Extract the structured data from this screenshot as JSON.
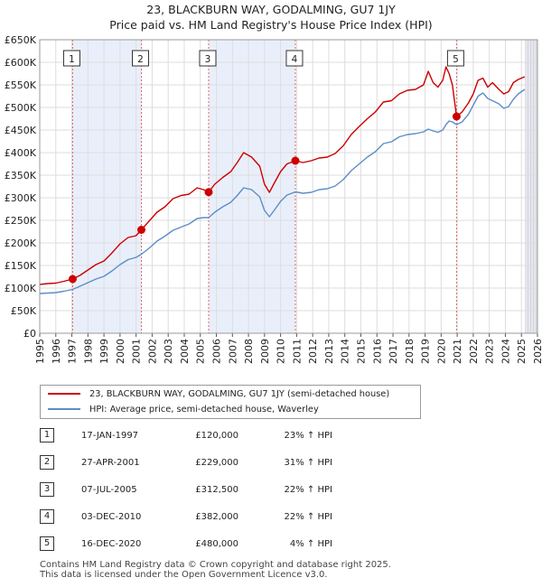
{
  "title": {
    "line1": "23, BLACKBURN WAY, GODALMING, GU7 1JY",
    "line2": "Price paid vs. HM Land Registry's House Price Index (HPI)"
  },
  "chart_data": {
    "type": "line",
    "x_ticks": [
      "1995",
      "1996",
      "1997",
      "1998",
      "1999",
      "2000",
      "2001",
      "2002",
      "2003",
      "2004",
      "2005",
      "2006",
      "2007",
      "2008",
      "2009",
      "2010",
      "2011",
      "2012",
      "2013",
      "2014",
      "2015",
      "2016",
      "2017",
      "2018",
      "2019",
      "2020",
      "2021",
      "2022",
      "2023",
      "2024",
      "2025",
      "2026"
    ],
    "y_ticks": [
      "£0",
      "£50K",
      "£100K",
      "£150K",
      "£200K",
      "£250K",
      "£300K",
      "£350K",
      "£400K",
      "£450K",
      "£500K",
      "£550K",
      "£600K",
      "£650K"
    ],
    "xlim": [
      1995,
      2026
    ],
    "ylim": [
      0,
      650000
    ],
    "grid": true,
    "series": [
      {
        "name": "23, BLACKBURN WAY, GODALMING, GU7 1JY (semi-detached house)",
        "color": "#cc0000",
        "points": [
          [
            1995.0,
            108000
          ],
          [
            1995.5,
            110000
          ],
          [
            1996.0,
            111000
          ],
          [
            1996.5,
            115000
          ],
          [
            1997.05,
            120000
          ],
          [
            1997.5,
            128000
          ],
          [
            1998.0,
            140000
          ],
          [
            1998.5,
            152000
          ],
          [
            1999.0,
            160000
          ],
          [
            1999.5,
            178000
          ],
          [
            2000.0,
            198000
          ],
          [
            2000.5,
            212000
          ],
          [
            2001.0,
            216000
          ],
          [
            2001.33,
            229000
          ],
          [
            2001.8,
            248000
          ],
          [
            2002.3,
            268000
          ],
          [
            2002.8,
            280000
          ],
          [
            2003.3,
            298000
          ],
          [
            2003.8,
            305000
          ],
          [
            2004.3,
            308000
          ],
          [
            2004.8,
            322000
          ],
          [
            2005.2,
            318000
          ],
          [
            2005.52,
            312500
          ],
          [
            2005.9,
            330000
          ],
          [
            2006.4,
            345000
          ],
          [
            2006.9,
            358000
          ],
          [
            2007.3,
            378000
          ],
          [
            2007.7,
            400000
          ],
          [
            2008.2,
            390000
          ],
          [
            2008.7,
            370000
          ],
          [
            2009.0,
            330000
          ],
          [
            2009.3,
            312000
          ],
          [
            2009.6,
            332000
          ],
          [
            2010.0,
            358000
          ],
          [
            2010.4,
            375000
          ],
          [
            2010.92,
            382000
          ],
          [
            2011.4,
            378000
          ],
          [
            2011.9,
            382000
          ],
          [
            2012.4,
            388000
          ],
          [
            2012.9,
            390000
          ],
          [
            2013.4,
            398000
          ],
          [
            2013.9,
            415000
          ],
          [
            2014.4,
            440000
          ],
          [
            2014.9,
            458000
          ],
          [
            2015.4,
            475000
          ],
          [
            2015.9,
            490000
          ],
          [
            2016.4,
            512000
          ],
          [
            2016.9,
            515000
          ],
          [
            2017.4,
            530000
          ],
          [
            2017.9,
            538000
          ],
          [
            2018.4,
            540000
          ],
          [
            2018.9,
            550000
          ],
          [
            2019.2,
            580000
          ],
          [
            2019.5,
            555000
          ],
          [
            2019.8,
            545000
          ],
          [
            2020.1,
            560000
          ],
          [
            2020.3,
            590000
          ],
          [
            2020.5,
            575000
          ],
          [
            2020.7,
            550000
          ],
          [
            2020.96,
            480000
          ],
          [
            2021.3,
            490000
          ],
          [
            2021.7,
            510000
          ],
          [
            2022.0,
            530000
          ],
          [
            2022.3,
            560000
          ],
          [
            2022.6,
            565000
          ],
          [
            2022.9,
            545000
          ],
          [
            2023.2,
            555000
          ],
          [
            2023.6,
            540000
          ],
          [
            2023.9,
            530000
          ],
          [
            2024.2,
            535000
          ],
          [
            2024.5,
            555000
          ],
          [
            2024.8,
            562000
          ],
          [
            2025.2,
            568000
          ]
        ]
      },
      {
        "name": "HPI: Average price, semi-detached house, Waverley",
        "color": "#5b8ec9",
        "points": [
          [
            1995.0,
            88000
          ],
          [
            1995.5,
            89000
          ],
          [
            1996.0,
            90000
          ],
          [
            1996.5,
            93000
          ],
          [
            1997.05,
            97000
          ],
          [
            1997.5,
            104000
          ],
          [
            1998.0,
            112000
          ],
          [
            1998.5,
            120000
          ],
          [
            1999.0,
            126000
          ],
          [
            1999.5,
            138000
          ],
          [
            2000.0,
            152000
          ],
          [
            2000.5,
            163000
          ],
          [
            2001.0,
            168000
          ],
          [
            2001.33,
            175000
          ],
          [
            2001.8,
            188000
          ],
          [
            2002.3,
            204000
          ],
          [
            2002.8,
            215000
          ],
          [
            2003.3,
            228000
          ],
          [
            2003.8,
            235000
          ],
          [
            2004.3,
            242000
          ],
          [
            2004.8,
            254000
          ],
          [
            2005.2,
            256000
          ],
          [
            2005.52,
            256000
          ],
          [
            2005.9,
            268000
          ],
          [
            2006.4,
            280000
          ],
          [
            2006.9,
            290000
          ],
          [
            2007.3,
            305000
          ],
          [
            2007.7,
            322000
          ],
          [
            2008.2,
            318000
          ],
          [
            2008.7,
            302000
          ],
          [
            2009.0,
            272000
          ],
          [
            2009.3,
            258000
          ],
          [
            2009.6,
            272000
          ],
          [
            2010.0,
            292000
          ],
          [
            2010.4,
            306000
          ],
          [
            2010.92,
            313000
          ],
          [
            2011.4,
            310000
          ],
          [
            2011.9,
            312000
          ],
          [
            2012.4,
            318000
          ],
          [
            2012.9,
            320000
          ],
          [
            2013.4,
            326000
          ],
          [
            2013.9,
            340000
          ],
          [
            2014.4,
            360000
          ],
          [
            2014.9,
            375000
          ],
          [
            2015.4,
            390000
          ],
          [
            2015.9,
            402000
          ],
          [
            2016.4,
            420000
          ],
          [
            2016.9,
            424000
          ],
          [
            2017.4,
            435000
          ],
          [
            2017.9,
            440000
          ],
          [
            2018.4,
            442000
          ],
          [
            2018.9,
            446000
          ],
          [
            2019.2,
            452000
          ],
          [
            2019.5,
            448000
          ],
          [
            2019.8,
            445000
          ],
          [
            2020.1,
            450000
          ],
          [
            2020.3,
            462000
          ],
          [
            2020.5,
            470000
          ],
          [
            2020.7,
            468000
          ],
          [
            2020.96,
            462000
          ],
          [
            2021.3,
            468000
          ],
          [
            2021.7,
            485000
          ],
          [
            2022.0,
            505000
          ],
          [
            2022.3,
            525000
          ],
          [
            2022.6,
            532000
          ],
          [
            2022.9,
            520000
          ],
          [
            2023.2,
            515000
          ],
          [
            2023.6,
            508000
          ],
          [
            2023.9,
            498000
          ],
          [
            2024.2,
            502000
          ],
          [
            2024.5,
            518000
          ],
          [
            2024.8,
            530000
          ],
          [
            2025.2,
            540000
          ]
        ]
      }
    ],
    "sales": [
      {
        "n": "1",
        "x": 1997.05,
        "y": 120000
      },
      {
        "n": "2",
        "x": 2001.33,
        "y": 229000
      },
      {
        "n": "3",
        "x": 2005.52,
        "y": 312500
      },
      {
        "n": "4",
        "x": 2010.92,
        "y": 382000
      },
      {
        "n": "5",
        "x": 2020.96,
        "y": 480000
      }
    ],
    "shaded_ranges": [
      [
        1997.05,
        2001.33
      ],
      [
        2005.52,
        2010.92
      ],
      [
        2025.25,
        2026
      ]
    ]
  },
  "legend": {
    "items": [
      {
        "label": "23, BLACKBURN WAY, GODALMING, GU7 1JY (semi-detached house)",
        "color": "#cc0000"
      },
      {
        "label": "HPI: Average price, semi-detached house, Waverley",
        "color": "#5b8ec9"
      }
    ]
  },
  "table": {
    "rows": [
      {
        "n": "1",
        "date": "17-JAN-1997",
        "price": "£120,000",
        "hpi": "23% ↑ HPI"
      },
      {
        "n": "2",
        "date": "27-APR-2001",
        "price": "£229,000",
        "hpi": "31% ↑ HPI"
      },
      {
        "n": "3",
        "date": "07-JUL-2005",
        "price": "£312,500",
        "hpi": "22% ↑ HPI"
      },
      {
        "n": "4",
        "date": "03-DEC-2010",
        "price": "£382,000",
        "hpi": "22% ↑ HPI"
      },
      {
        "n": "5",
        "date": "16-DEC-2020",
        "price": "£480,000",
        "hpi": "4% ↑ HPI"
      }
    ]
  },
  "footer": {
    "line1": "Contains HM Land Registry data © Crown copyright and database right 2025.",
    "line2": "This data is licensed under the Open Government Licence v3.0."
  }
}
